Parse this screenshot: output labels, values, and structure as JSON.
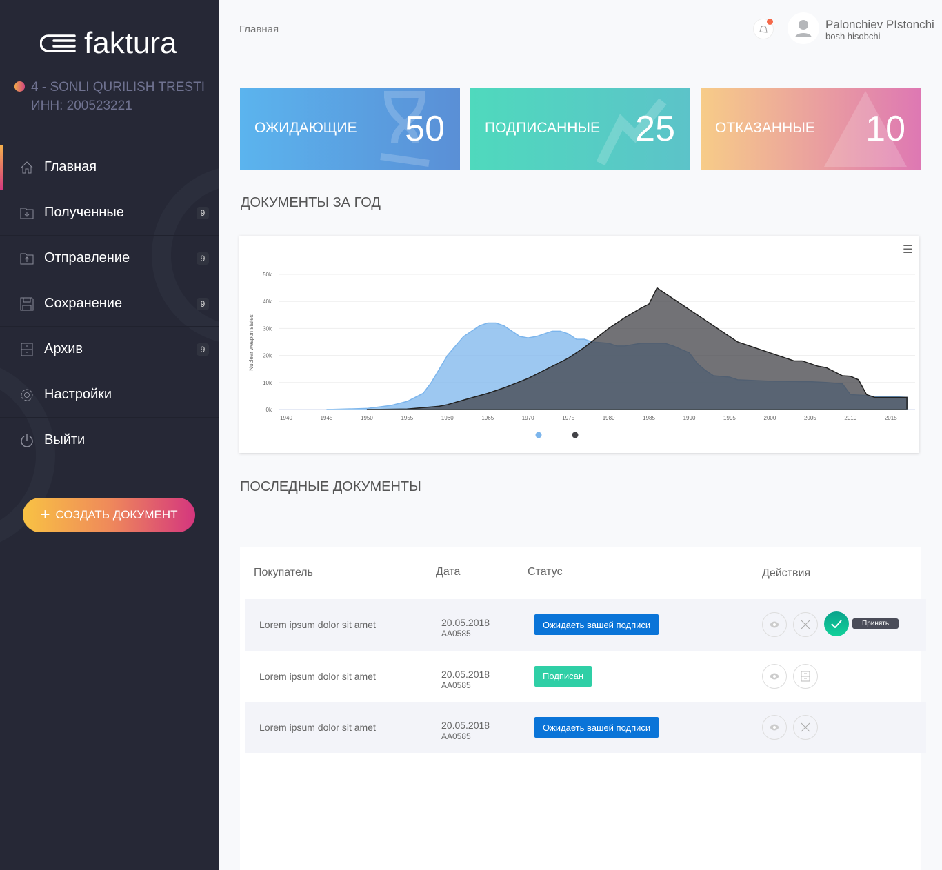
{
  "sidebar": {
    "logo": "faktura",
    "org_name": "4 - SONLI QURILISH TRESTI",
    "org_inn": "ИНН: 200523221",
    "items": [
      {
        "label": "Главная",
        "icon": "home-icon",
        "badge": null,
        "active": true
      },
      {
        "label": "Полученные",
        "icon": "folder-in-icon",
        "badge": "9"
      },
      {
        "label": "Отправление",
        "icon": "folder-out-icon",
        "badge": "9"
      },
      {
        "label": "Сохранение",
        "icon": "save-icon",
        "badge": "9"
      },
      {
        "label": "Архив",
        "icon": "archive-icon",
        "badge": "9"
      },
      {
        "label": "Настройки",
        "icon": "gear-icon",
        "badge": null
      },
      {
        "label": "Выйти",
        "icon": "power-icon",
        "badge": null
      }
    ],
    "create_button": "СОЗДАТЬ ДОКУМЕНТ"
  },
  "header": {
    "breadcrumb": "Главная",
    "user_name": "Palonchiev PIstonchi",
    "user_role": "bosh hisobchi"
  },
  "stats": [
    {
      "label": "ОЖИДАЮЩИЕ",
      "value": "50",
      "colors": [
        "#5bb4ee",
        "#5a8fd6"
      ]
    },
    {
      "label": "ПОДПИСАННЫЕ",
      "value": "25",
      "colors": [
        "#4fd9bd",
        "#5cc3c9"
      ]
    },
    {
      "label": "ОТКАЗАННЫЕ",
      "value": "10",
      "colors": [
        "#f7cc88",
        "#de78b3"
      ]
    }
  ],
  "chart_section_title": "ДОКУМЕНТЫ ЗА ГОД",
  "chart_data": {
    "type": "area",
    "title": "",
    "xlabel": "",
    "ylabel": "Nuclear weapon states",
    "xlim": [
      1940,
      2017
    ],
    "ylim": [
      0,
      50000
    ],
    "x_ticks": [
      "1940",
      "1945",
      "1950",
      "1955",
      "1960",
      "1965",
      "1970",
      "1975",
      "1980",
      "1985",
      "1990",
      "1995",
      "2000",
      "2005",
      "2010",
      "2015"
    ],
    "y_ticks": [
      "0k",
      "10k",
      "20k",
      "30k",
      "40k",
      "50k"
    ],
    "grid": true,
    "legend": "bottom",
    "series": [
      {
        "color": "#7cb5ec",
        "points": [
          [
            1945,
            0
          ],
          [
            1950,
            400
          ],
          [
            1953,
            1500
          ],
          [
            1955,
            3000
          ],
          [
            1957,
            6000
          ],
          [
            1958,
            10000
          ],
          [
            1959,
            15000
          ],
          [
            1960,
            20000
          ],
          [
            1962,
            27000
          ],
          [
            1964,
            31000
          ],
          [
            1965,
            32000
          ],
          [
            1966,
            32000
          ],
          [
            1967,
            31000
          ],
          [
            1969,
            27000
          ],
          [
            1970,
            26500
          ],
          [
            1971,
            27000
          ],
          [
            1973,
            29000
          ],
          [
            1974,
            29000
          ],
          [
            1975,
            28000
          ],
          [
            1976,
            26000
          ],
          [
            1977,
            26000
          ],
          [
            1978,
            25000
          ],
          [
            1980,
            24500
          ],
          [
            1981,
            23500
          ],
          [
            1982,
            23500
          ],
          [
            1984,
            24500
          ],
          [
            1987,
            24500
          ],
          [
            1988,
            23500
          ],
          [
            1990,
            21000
          ],
          [
            1991,
            17000
          ],
          [
            1992,
            14500
          ],
          [
            1993,
            12500
          ],
          [
            1995,
            12000
          ],
          [
            1996,
            11000
          ],
          [
            2000,
            10500
          ],
          [
            2005,
            10300
          ],
          [
            2007,
            10000
          ],
          [
            2009,
            9500
          ],
          [
            2010,
            5500
          ],
          [
            2012,
            5200
          ],
          [
            2013,
            4800
          ],
          [
            2015,
            4800
          ],
          [
            2017,
            4500
          ]
        ]
      },
      {
        "color": "#434348",
        "points": [
          [
            1950,
            0
          ],
          [
            1955,
            200
          ],
          [
            1957,
            700
          ],
          [
            1959,
            1200
          ],
          [
            1960,
            1800
          ],
          [
            1962,
            3500
          ],
          [
            1965,
            6000
          ],
          [
            1967,
            8000
          ],
          [
            1970,
            11500
          ],
          [
            1975,
            19000
          ],
          [
            1977,
            23000
          ],
          [
            1980,
            30000
          ],
          [
            1982,
            34000
          ],
          [
            1984,
            37500
          ],
          [
            1985,
            39000
          ],
          [
            1986,
            45000
          ],
          [
            1990,
            37000
          ],
          [
            1995,
            27000
          ],
          [
            1996,
            25000
          ],
          [
            2000,
            21000
          ],
          [
            2003,
            18000
          ],
          [
            2004,
            18000
          ],
          [
            2006,
            16000
          ],
          [
            2007,
            15500
          ],
          [
            2009,
            12500
          ],
          [
            2010,
            12300
          ],
          [
            2011,
            11000
          ],
          [
            2012,
            5500
          ],
          [
            2013,
            4500
          ],
          [
            2017,
            4500
          ]
        ]
      }
    ]
  },
  "docs": {
    "title": "ПОСЛЕДНЫЕ ДОКУМЕНТЫ",
    "columns": [
      "Покупатель",
      "Дата",
      "Статус",
      "Действия"
    ],
    "rows": [
      {
        "buyer": "Lorem ipsum dolor sit amet",
        "date": "20.05.2018",
        "number": "AA0585",
        "status": "Ожидаеть вашей подписи",
        "status_color": "#0a74d8"
      },
      {
        "buyer": "Lorem ipsum dolor sit amet",
        "date": "20.05.2018",
        "number": "AA0585",
        "status": "Подписан",
        "status_color": "#2fcfa6"
      },
      {
        "buyer": "Lorem ipsum dolor sit amet",
        "date": "20.05.2018",
        "number": "AA0585",
        "status": "Ожидаеть вашей подписи",
        "status_color": "#0a74d8"
      }
    ],
    "accept_tooltip": "Принять"
  }
}
